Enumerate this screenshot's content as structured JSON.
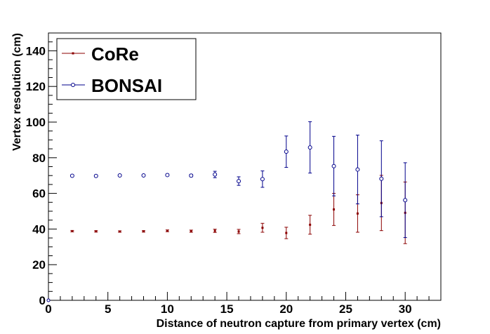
{
  "chart_data": {
    "type": "scatter",
    "title": "",
    "xlabel": "Distance of neutron capture from primary vertex (cm)",
    "ylabel": "Vertex resolution (cm)",
    "xlim": [
      0,
      33
    ],
    "ylim": [
      0,
      150
    ],
    "x_ticks": [
      0,
      5,
      10,
      15,
      20,
      25,
      30
    ],
    "y_ticks": [
      0,
      20,
      40,
      60,
      80,
      100,
      120,
      140
    ],
    "legend_position": "top-left",
    "series": [
      {
        "name": "CoRe",
        "color": "#8b0000",
        "marker": "filled-square",
        "points": [
          {
            "x": 2,
            "y": 38.8,
            "err": 0.4
          },
          {
            "x": 4,
            "y": 38.7,
            "err": 0.4
          },
          {
            "x": 6,
            "y": 38.6,
            "err": 0.4
          },
          {
            "x": 8,
            "y": 38.7,
            "err": 0.4
          },
          {
            "x": 10,
            "y": 39.0,
            "err": 0.5
          },
          {
            "x": 12,
            "y": 38.8,
            "err": 0.6
          },
          {
            "x": 14,
            "y": 39.0,
            "err": 0.9
          },
          {
            "x": 16,
            "y": 38.6,
            "err": 1.2
          },
          {
            "x": 18,
            "y": 40.7,
            "err": 2.5
          },
          {
            "x": 20,
            "y": 37.8,
            "err": 3.2
          },
          {
            "x": 22,
            "y": 42.4,
            "err": 5.3
          },
          {
            "x": 24,
            "y": 51.0,
            "err": 9.0
          },
          {
            "x": 26,
            "y": 48.7,
            "err": 10.5
          },
          {
            "x": 28,
            "y": 54.6,
            "err": 15.5
          },
          {
            "x": 30,
            "y": 49.1,
            "err": 17.3
          }
        ]
      },
      {
        "name": "BONSAI",
        "color": "#00008b",
        "marker": "open-circle",
        "points": [
          {
            "x": 2,
            "y": 69.9,
            "err": 0.5
          },
          {
            "x": 4,
            "y": 69.8,
            "err": 0.5
          },
          {
            "x": 6,
            "y": 70.1,
            "err": 0.5
          },
          {
            "x": 8,
            "y": 70.1,
            "err": 0.5
          },
          {
            "x": 10,
            "y": 70.3,
            "err": 0.6
          },
          {
            "x": 12,
            "y": 70.0,
            "err": 0.7
          },
          {
            "x": 14,
            "y": 70.6,
            "err": 1.8
          },
          {
            "x": 16,
            "y": 66.9,
            "err": 2.4
          },
          {
            "x": 18,
            "y": 68.0,
            "err": 4.6
          },
          {
            "x": 20,
            "y": 83.4,
            "err": 8.8
          },
          {
            "x": 22,
            "y": 85.8,
            "err": 14.4
          },
          {
            "x": 24,
            "y": 75.3,
            "err": 16.7
          },
          {
            "x": 26,
            "y": 73.4,
            "err": 19.3
          },
          {
            "x": 28,
            "y": 68.2,
            "err": 21.3
          },
          {
            "x": 30,
            "y": 56.2,
            "err": 21.0
          }
        ]
      }
    ]
  }
}
